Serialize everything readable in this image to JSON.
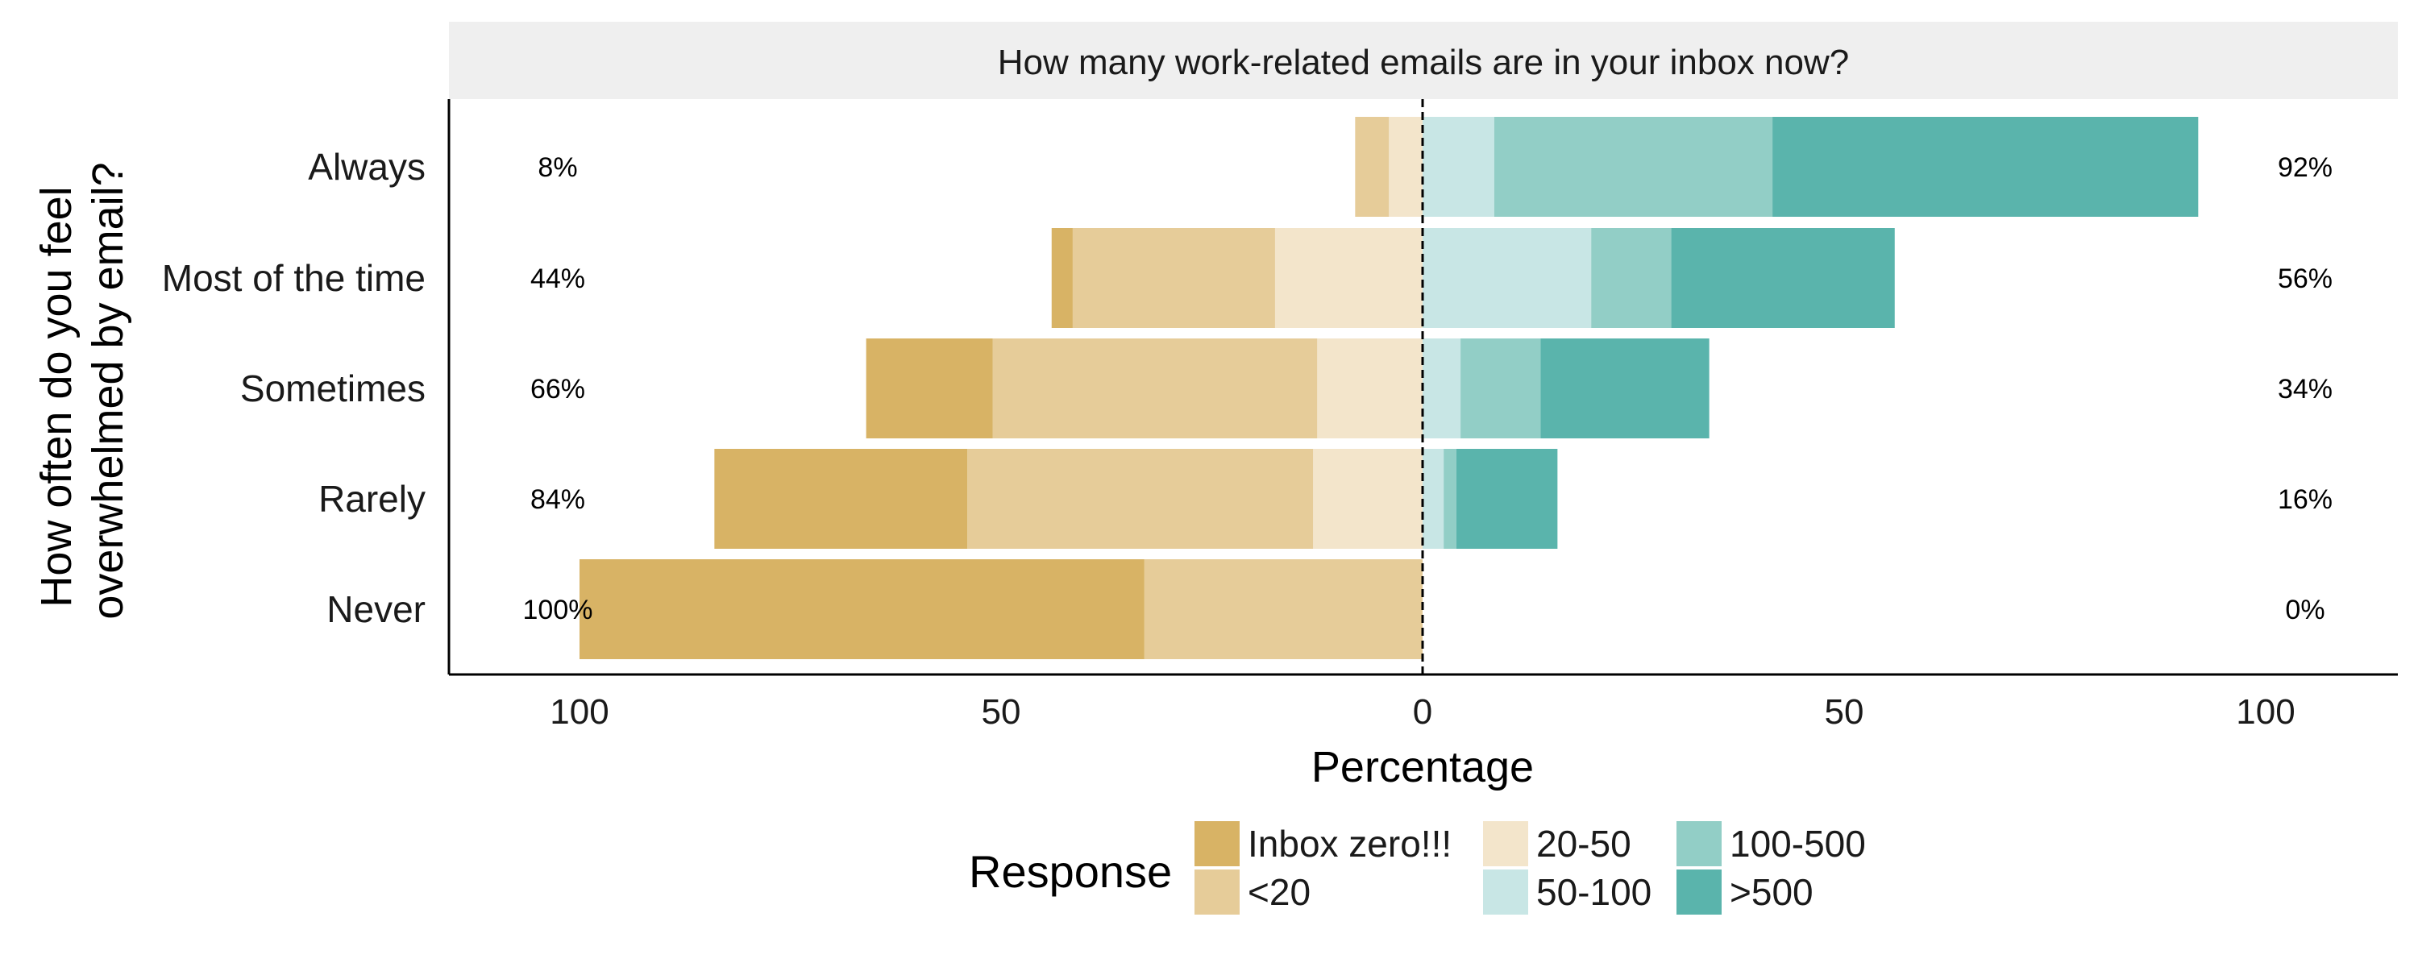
{
  "chart_data": {
    "type": "bar",
    "orientation": "horizontal-diverging",
    "strip_title": "How many work-related emails are in your inbox now?",
    "xlabel": "Percentage",
    "ylabel_lines": [
      "How often do you feel",
      "overwhelmed by email?"
    ],
    "xlim": [
      -100,
      100
    ],
    "x_ticks": [
      {
        "value": -100,
        "label": "100"
      },
      {
        "value": -50,
        "label": "50"
      },
      {
        "value": 0,
        "label": "0"
      },
      {
        "value": 50,
        "label": "50"
      },
      {
        "value": 100,
        "label": "100"
      }
    ],
    "categories": [
      "Always",
      "Most of the time",
      "Sometimes",
      "Rarely",
      "Never"
    ],
    "series": [
      {
        "name": "Inbox zero!!!",
        "side": "left",
        "color": "#d8b365",
        "values": [
          0,
          2.5,
          15,
          30,
          67
        ]
      },
      {
        "name": "<20",
        "side": "left",
        "color": "#e6cc99",
        "values": [
          4,
          24,
          38.5,
          41,
          33
        ]
      },
      {
        "name": "20-50",
        "side": "left",
        "color": "#f3e5cb",
        "values": [
          4,
          17.5,
          12.5,
          13,
          0
        ]
      },
      {
        "name": "50-100",
        "side": "right",
        "color": "#c8e6e5",
        "values": [
          8.5,
          20,
          4.5,
          2.5,
          0
        ]
      },
      {
        "name": "100-500",
        "side": "right",
        "color": "#92cec6",
        "values": [
          33,
          9.5,
          9.5,
          1.5,
          0
        ]
      },
      {
        "name": ">500",
        "side": "right",
        "color": "#5ab4ac",
        "values": [
          50.5,
          26.5,
          20,
          12,
          0
        ]
      }
    ],
    "left_totals": [
      "8%",
      "44%",
      "66%",
      "84%",
      "100%"
    ],
    "right_totals": [
      "92%",
      "56%",
      "34%",
      "16%",
      "0%"
    ],
    "legend": {
      "title": "Response",
      "position": "bottom",
      "columns": [
        [
          "Inbox zero!!!",
          "<20"
        ],
        [
          "20-50",
          "50-100"
        ],
        [
          "100-500",
          ">500"
        ]
      ]
    },
    "zero_line": "dashed"
  }
}
